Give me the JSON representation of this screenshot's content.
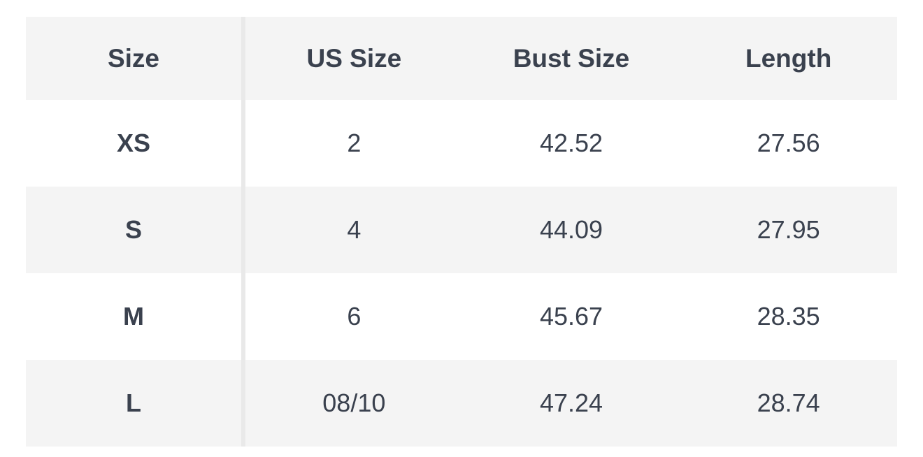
{
  "colors": {
    "background": "#ffffff",
    "row_alt_background": "#f4f4f4",
    "divider": "#e9e9e9",
    "text": "#3a414e"
  },
  "chart_data": {
    "type": "table",
    "columns": [
      "Size",
      "US Size",
      "Bust Size",
      "Length"
    ],
    "rows": [
      [
        "XS",
        "2",
        "42.52",
        "27.56"
      ],
      [
        "S",
        "4",
        "44.09",
        "27.95"
      ],
      [
        "M",
        "6",
        "45.67",
        "28.35"
      ],
      [
        "L",
        "08/10",
        "47.24",
        "28.74"
      ]
    ],
    "layout": {
      "header_background": "#f4f4f4",
      "alternating_rows": true,
      "first_column_divider": true
    }
  }
}
